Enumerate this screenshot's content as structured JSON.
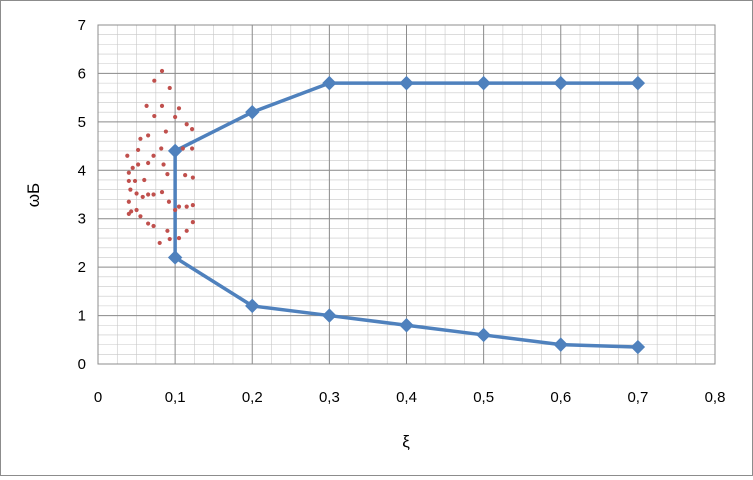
{
  "chart_data": {
    "type": "scatter",
    "title": "",
    "xlabel": "ξ",
    "ylabel": "ωБ",
    "xlim": [
      0,
      0.8
    ],
    "ylim": [
      0,
      7
    ],
    "xticks": [
      0,
      0.1,
      0.2,
      0.3,
      0.4,
      0.5,
      0.6,
      0.7,
      0.8
    ],
    "xtick_labels": [
      "0",
      "0,1",
      "0,2",
      "0,3",
      "0,4",
      "0,5",
      "0,6",
      "0,7",
      "0,8"
    ],
    "yticks": [
      0,
      1,
      2,
      3,
      4,
      5,
      6,
      7
    ],
    "ytick_labels": [
      "0",
      "1",
      "2",
      "3",
      "4",
      "5",
      "6",
      "7"
    ],
    "grid": true,
    "minor_grid": true,
    "legend": "none",
    "series": [
      {
        "marker": "diamond",
        "line": true,
        "color": "#4f81bd",
        "points": [
          [
            0.7,
            5.8
          ],
          [
            0.6,
            5.8
          ],
          [
            0.5,
            5.8
          ],
          [
            0.4,
            5.8
          ],
          [
            0.3,
            5.8
          ],
          [
            0.2,
            5.2
          ],
          [
            0.1,
            4.4
          ],
          [
            0.1,
            2.2
          ],
          [
            0.2,
            1.2
          ],
          [
            0.3,
            1.0
          ],
          [
            0.4,
            0.8
          ],
          [
            0.5,
            0.6
          ],
          [
            0.6,
            0.4
          ],
          [
            0.7,
            0.35
          ]
        ]
      },
      {
        "marker": "dot",
        "line": false,
        "color": "#c0504d",
        "points": [
          [
            0.083,
            6.05
          ],
          [
            0.073,
            5.85
          ],
          [
            0.093,
            5.7
          ],
          [
            0.063,
            5.33
          ],
          [
            0.083,
            5.33
          ],
          [
            0.105,
            5.28
          ],
          [
            0.073,
            5.12
          ],
          [
            0.1,
            5.1
          ],
          [
            0.115,
            4.95
          ],
          [
            0.088,
            4.8
          ],
          [
            0.122,
            4.85
          ],
          [
            0.065,
            4.72
          ],
          [
            0.055,
            4.65
          ],
          [
            0.082,
            4.45
          ],
          [
            0.052,
            4.42
          ],
          [
            0.11,
            4.45
          ],
          [
            0.122,
            4.45
          ],
          [
            0.038,
            4.3
          ],
          [
            0.072,
            4.3
          ],
          [
            0.065,
            4.15
          ],
          [
            0.085,
            4.12
          ],
          [
            0.052,
            4.12
          ],
          [
            0.045,
            4.05
          ],
          [
            0.04,
            3.95
          ],
          [
            0.09,
            3.92
          ],
          [
            0.113,
            3.9
          ],
          [
            0.123,
            3.85
          ],
          [
            0.04,
            3.78
          ],
          [
            0.06,
            3.8
          ],
          [
            0.048,
            3.78
          ],
          [
            0.042,
            3.6
          ],
          [
            0.083,
            3.55
          ],
          [
            0.05,
            3.52
          ],
          [
            0.065,
            3.5
          ],
          [
            0.072,
            3.5
          ],
          [
            0.058,
            3.45
          ],
          [
            0.04,
            3.35
          ],
          [
            0.092,
            3.35
          ],
          [
            0.105,
            3.25
          ],
          [
            0.115,
            3.25
          ],
          [
            0.123,
            3.28
          ],
          [
            0.043,
            3.15
          ],
          [
            0.05,
            3.18
          ],
          [
            0.04,
            3.1
          ],
          [
            0.055,
            3.05
          ],
          [
            0.1,
            3.18
          ],
          [
            0.123,
            2.93
          ],
          [
            0.065,
            2.9
          ],
          [
            0.072,
            2.85
          ],
          [
            0.09,
            2.75
          ],
          [
            0.115,
            2.75
          ],
          [
            0.105,
            2.6
          ],
          [
            0.093,
            2.58
          ],
          [
            0.08,
            2.5
          ]
        ]
      }
    ]
  }
}
